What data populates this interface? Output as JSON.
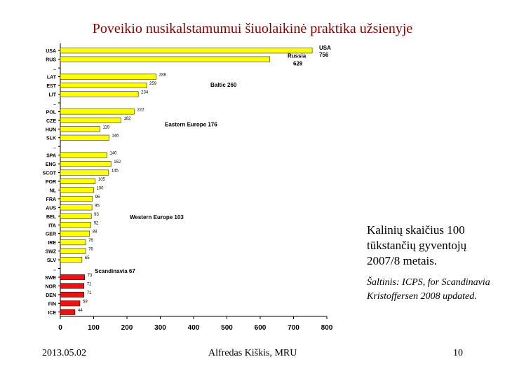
{
  "title": "Poveikio nusikalstamumui šiuolaikinė praktika užsienyje",
  "side_note": {
    "main": "Kalinių skaičius 100 tūkstančių gyventojų 2007/8 metais.",
    "source": "Šaltinis: ICPS, for Scandinavia Kristoffersen 2008 updated."
  },
  "footer": {
    "date": "2013.05.02",
    "author": "Alfredas Kiškis, MRU",
    "page": "10"
  },
  "colors": {
    "yellow_bar": "#ffff00",
    "red_bar": "#ee1111",
    "title": "#8b0000"
  },
  "chart_data": {
    "type": "bar",
    "orientation": "horizontal",
    "title": "",
    "xlabel": "",
    "ylabel": "",
    "xlim": [
      0,
      800
    ],
    "x_ticks": [
      "0",
      "100",
      "200",
      "300",
      "400",
      "500",
      "600",
      "700",
      "800"
    ],
    "grid": false,
    "categories": [
      "USA",
      "RUS",
      "..",
      "LAT",
      "EST",
      "LIT",
      "..",
      "POL",
      "CZE",
      "HUN",
      "SLK",
      "..",
      "SPA",
      "ENG",
      "SCOT",
      "POR",
      "NL",
      "FRA",
      "AUS",
      "BEL",
      "ITA",
      "GER",
      "IRE",
      "SWZ",
      "SLV",
      "..",
      "SWE",
      "NOR",
      "DEN",
      "FIN",
      "ICE"
    ],
    "values": [
      756,
      629,
      null,
      288,
      259,
      234,
      null,
      222,
      182,
      119,
      146,
      null,
      140,
      152,
      145,
      105,
      100,
      96,
      95,
      93,
      92,
      88,
      76,
      76,
      65,
      null,
      73,
      71,
      71,
      59,
      44
    ],
    "value_labels": [
      "",
      "",
      "",
      "288",
      "259",
      "234",
      "",
      "222",
      "182",
      "119",
      "146",
      "",
      "140",
      "152",
      "145",
      "105",
      "100",
      "96",
      "95",
      "93",
      "92",
      "88",
      "76",
      "76",
      "65",
      "",
      "73",
      "71",
      "71",
      "59",
      "44"
    ],
    "bar_colors": [
      "yellow",
      "yellow",
      "",
      "yellow",
      "yellow",
      "yellow",
      "",
      "yellow",
      "yellow",
      "yellow",
      "yellow",
      "",
      "yellow",
      "yellow",
      "yellow",
      "yellow",
      "yellow",
      "yellow",
      "yellow",
      "yellow",
      "yellow",
      "yellow",
      "yellow",
      "yellow",
      "yellow",
      "",
      "red",
      "red",
      "red",
      "red",
      "red"
    ],
    "annotations": [
      {
        "label": "USA",
        "value": "756",
        "row": 0
      },
      {
        "label": "Russia",
        "value": "629",
        "row": 1
      },
      {
        "label": "Baltic 260",
        "value": "",
        "row": 4
      },
      {
        "label": "Eastern Europe 176",
        "value": "",
        "row": 9
      },
      {
        "label": "Western Europe 103",
        "value": "",
        "row": 19
      },
      {
        "label": "Scandinavia 67",
        "value": "",
        "row": 26
      }
    ]
  }
}
